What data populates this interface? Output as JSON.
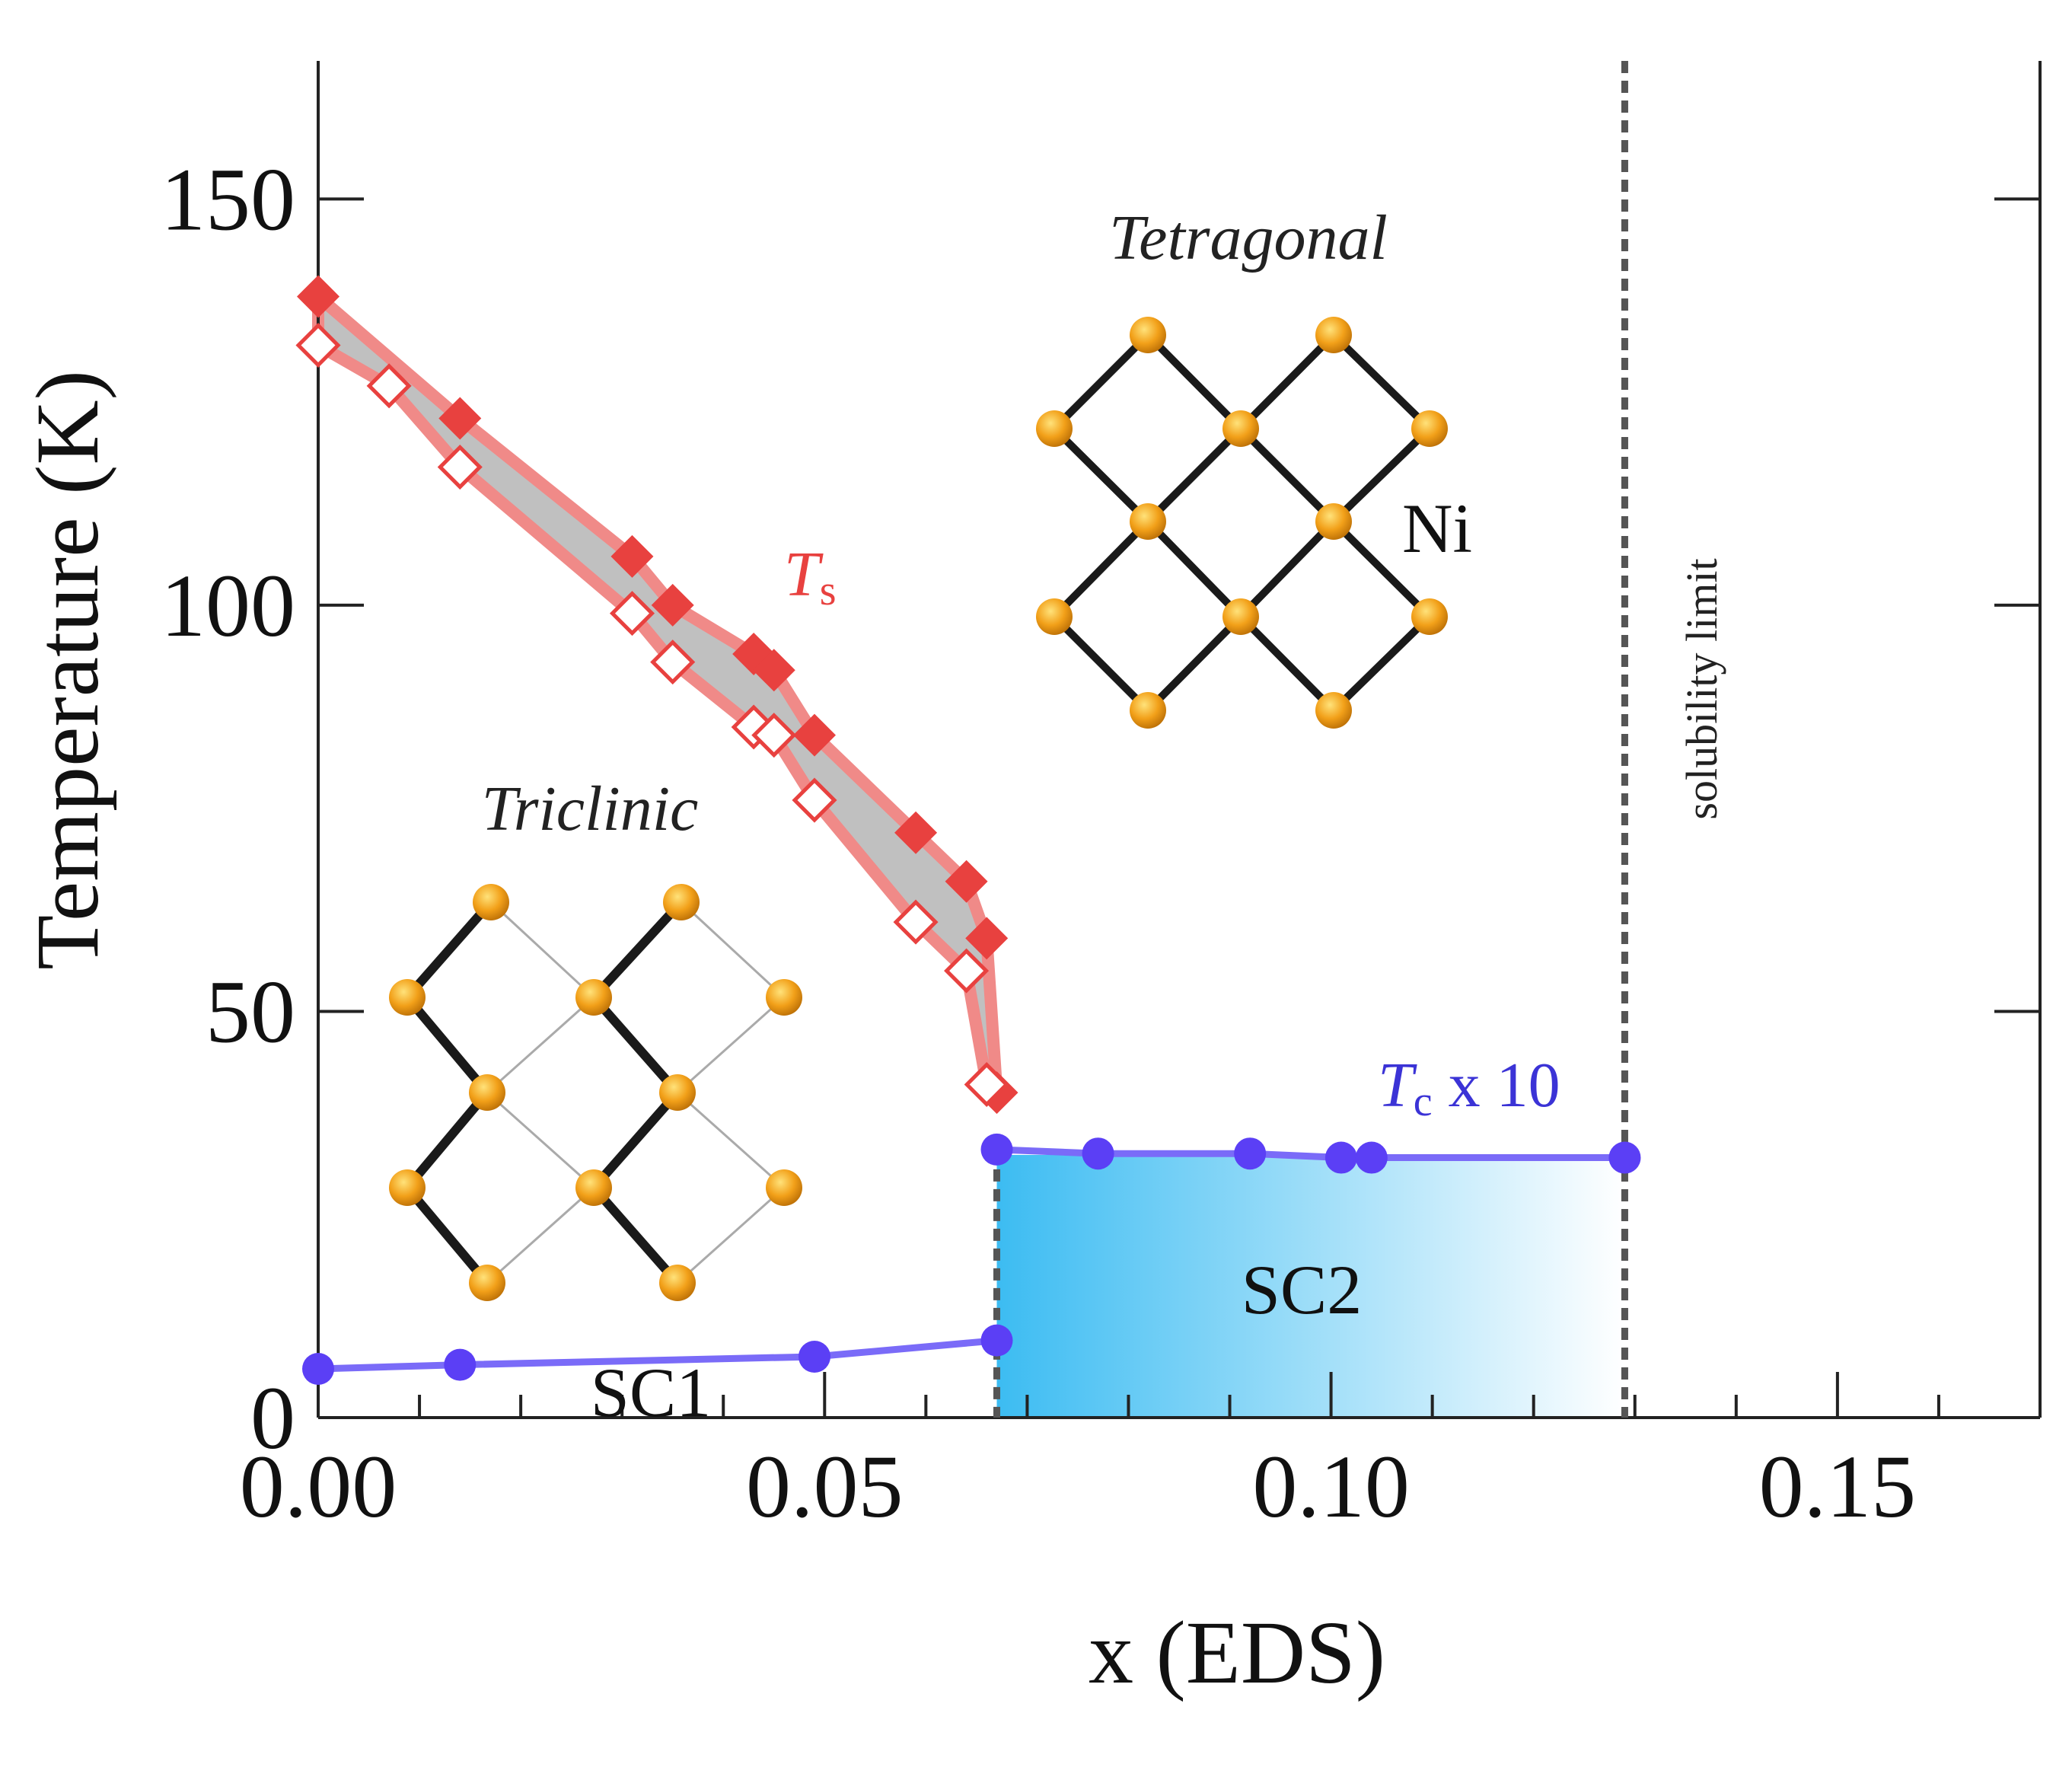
{
  "chart_data": {
    "type": "scatter",
    "title": "",
    "xlabel": "x (EDS)",
    "ylabel": "Temperature (K)",
    "xlim": [
      0.0,
      0.17
    ],
    "ylim": [
      0,
      167
    ],
    "x_ticks": [
      "0.00",
      "0.05",
      "0.10",
      "0.15"
    ],
    "y_ticks": [
      "0",
      "50",
      "100",
      "150"
    ],
    "x_tick_values": [
      0.0,
      0.05,
      0.1,
      0.15
    ],
    "y_tick_values": [
      0,
      50,
      100,
      150
    ],
    "series": [
      {
        "name": "Ts",
        "label_main": "T",
        "label_sub": "s",
        "marker": "diamond-filled",
        "color": "#e8413f",
        "x": [
          0.0,
          0.014,
          0.031,
          0.035,
          0.043,
          0.045,
          0.049,
          0.059,
          0.064,
          0.066,
          0.067
        ],
        "values": [
          138,
          123,
          106,
          100,
          94,
          92,
          84,
          72,
          66,
          59,
          40
        ]
      },
      {
        "name": "Ts (open)",
        "marker": "diamond-open",
        "color": "#e8413f",
        "x": [
          0.0,
          0.007,
          0.014,
          0.031,
          0.035,
          0.043,
          0.045,
          0.049,
          0.059,
          0.064,
          0.066
        ],
        "values": [
          132,
          127,
          117,
          99,
          93,
          85,
          84,
          76,
          61,
          55,
          41
        ]
      },
      {
        "name": "Tc x 10 (SC1)",
        "marker": "circle",
        "color": "#5b3ff5",
        "x": [
          0.0,
          0.014,
          0.049,
          0.067
        ],
        "values": [
          6,
          6.5,
          7.5,
          9.5
        ]
      },
      {
        "name": "Tc x 10",
        "label_main": "T",
        "label_sub": "c",
        "label_tail": " x 10",
        "marker": "circle",
        "color": "#5b3ff5",
        "x": [
          0.067,
          0.077,
          0.092,
          0.101,
          0.104,
          0.129
        ],
        "values": [
          33,
          32.5,
          32.5,
          32,
          32,
          32
        ]
      }
    ],
    "annotations": {
      "tetragonal": "Tetragonal",
      "triclinic": "Triclinic",
      "ni": "Ni",
      "sc1": "SC1",
      "sc2": "SC2",
      "solubility_limit": "solubility limit"
    },
    "phase_boundary_x": 0.067,
    "solubility_limit_x": 0.129,
    "colors": {
      "ts": "#e8413f",
      "ts_band": "#f08a88",
      "ts_fill": "#c0c0c0",
      "tc": "#5b3ff5",
      "sc2_fill_start": "#3cbcf2",
      "sc2_fill_end": "#ffffff",
      "atom": "#f2a019",
      "bond": "#1a1a1a"
    },
    "grid": false
  }
}
